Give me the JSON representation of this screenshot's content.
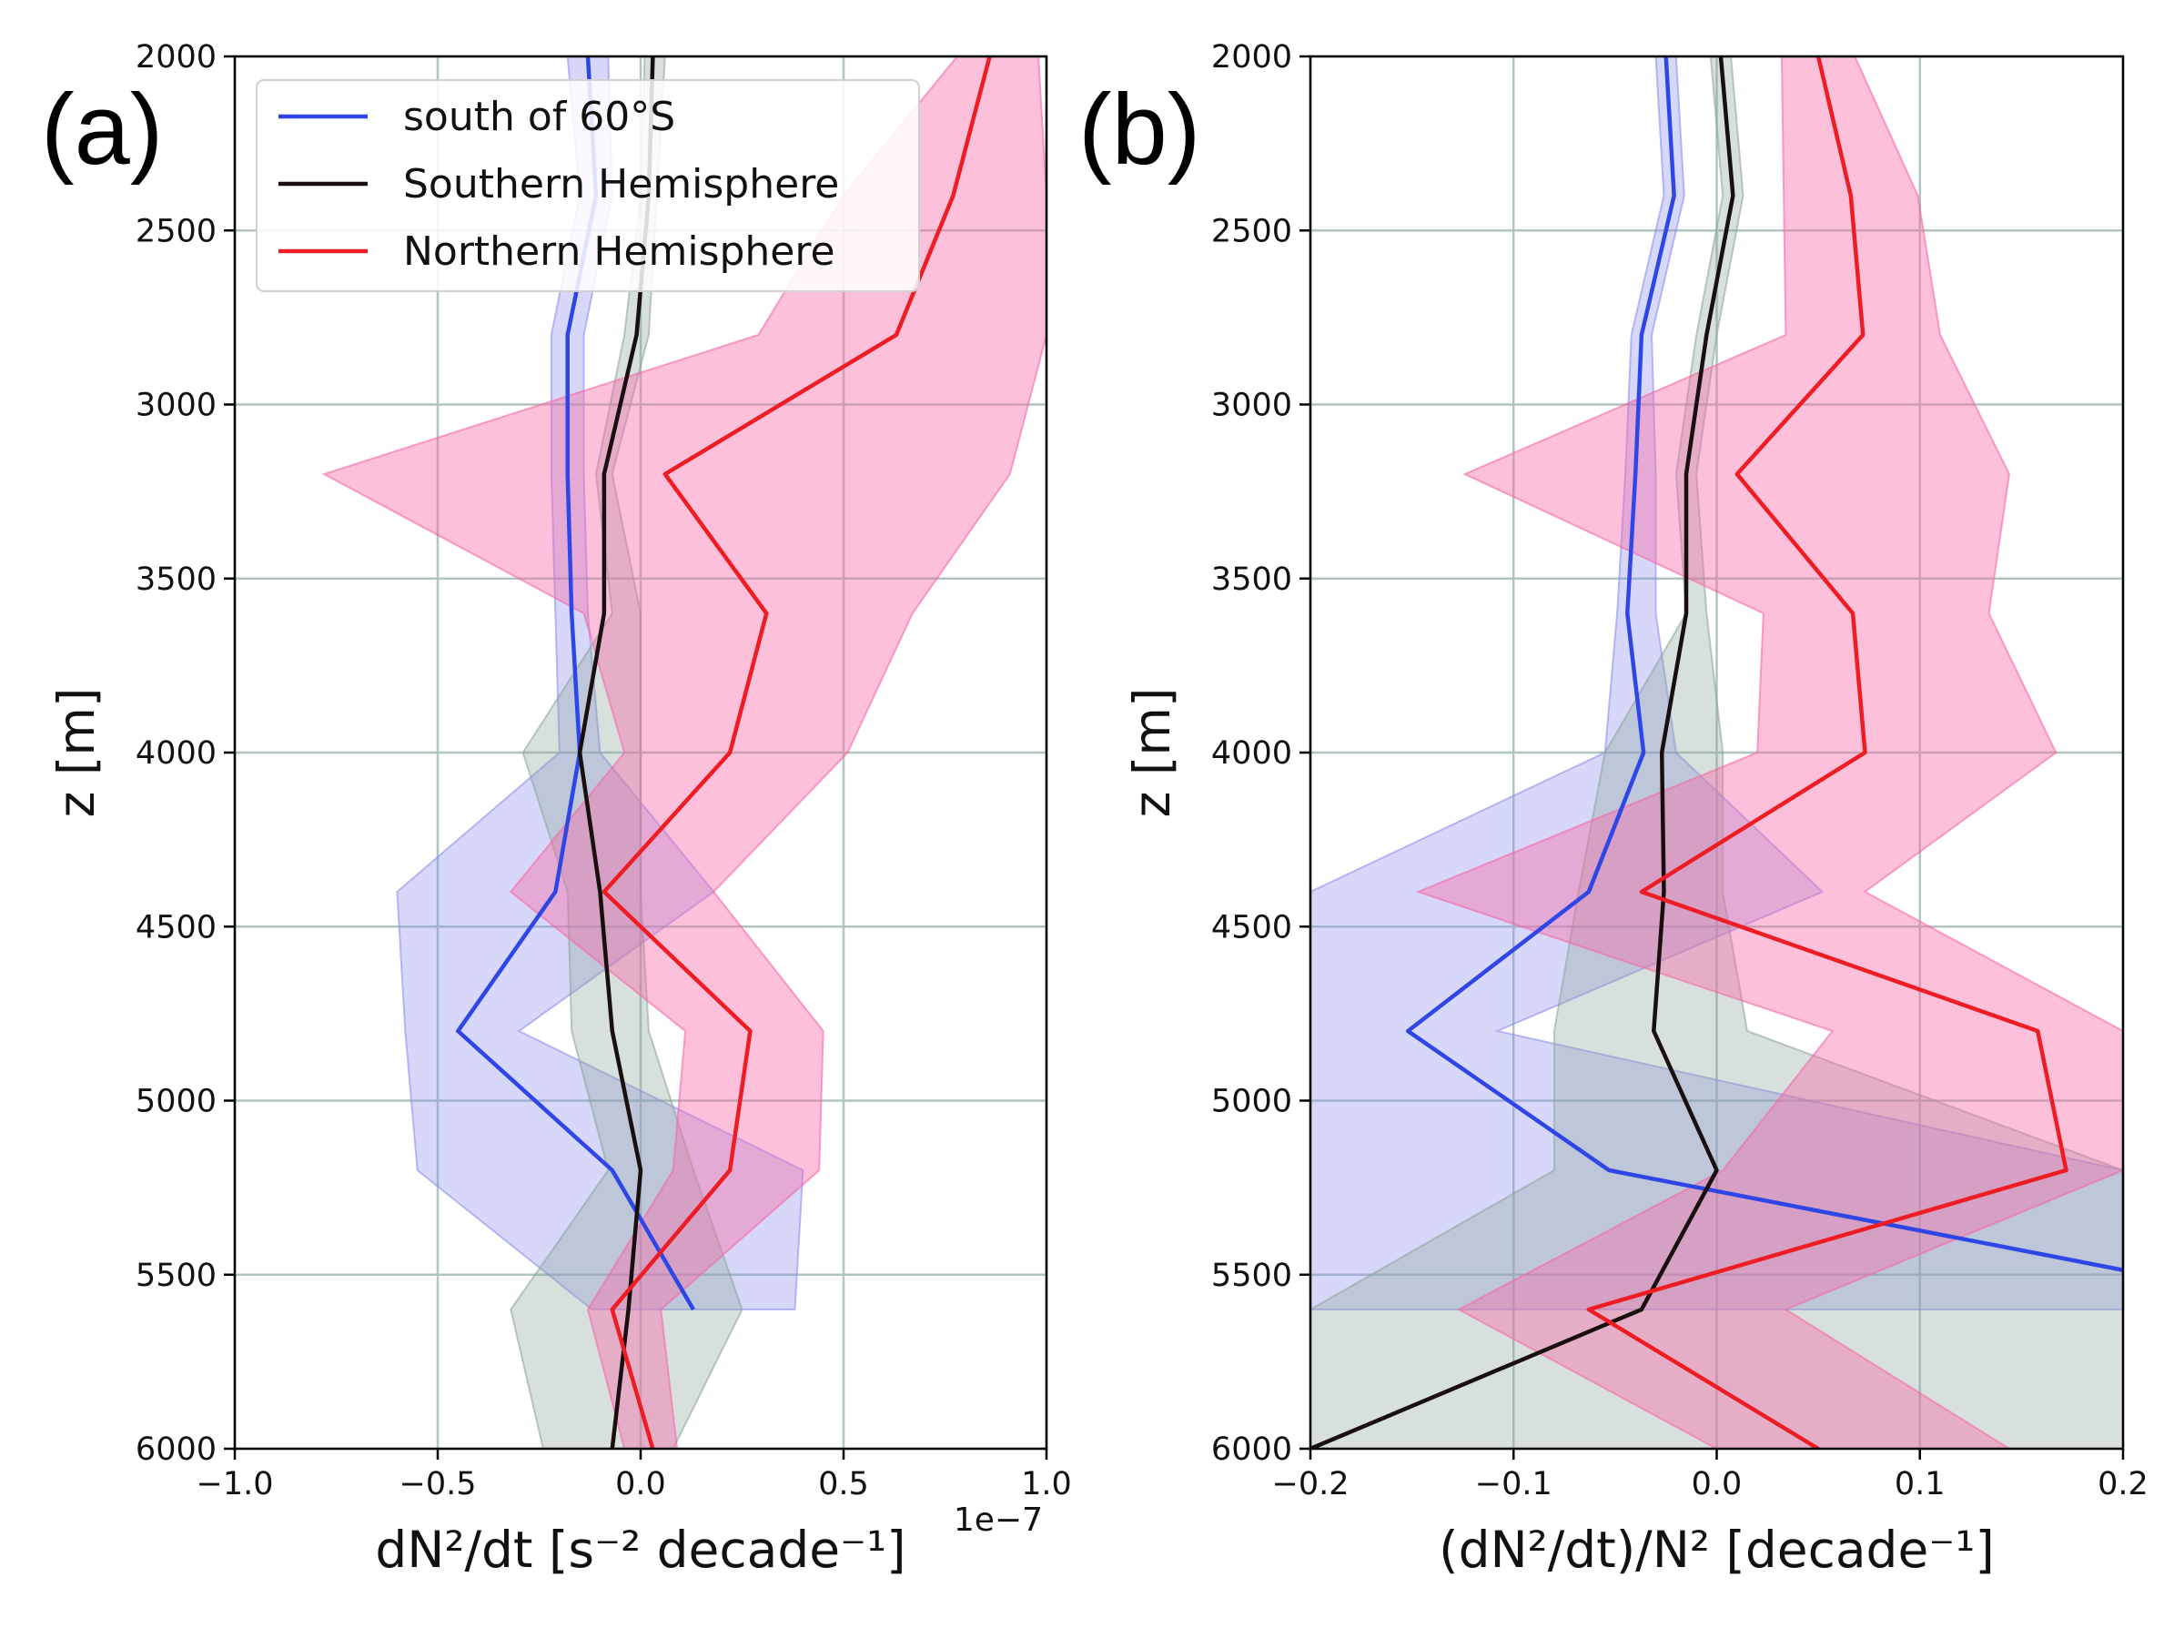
{
  "colors": {
    "blue": "#2f46e6",
    "black": "#1a0f0f",
    "red": "#ee1d23",
    "blue_fill": "#8c90ee",
    "grey_fill": "#8ea69e",
    "pink_fill": "#f768a6"
  },
  "legend": [
    "south of 60°S",
    "Southern Hemisphere",
    "Northern Hemisphere"
  ],
  "chart_data": [
    {
      "type": "line",
      "panel_label": "(a)",
      "xlabel": "dN²/dt [s⁻² decade⁻¹]",
      "x_offset_text": "1e−7",
      "ylabel": "z [m]",
      "xlim": [
        -1.0,
        1.0
      ],
      "ylim": [
        6000,
        2000
      ],
      "y_inverted": true,
      "grid": true,
      "legend_position": "top-right",
      "x_ticks": [
        "−1.0",
        "−0.5",
        "0.0",
        "0.5",
        "1.0"
      ],
      "x_tick_values": [
        -1.0,
        -0.5,
        0.0,
        0.5,
        1.0
      ],
      "y_ticks": [
        2000,
        2500,
        3000,
        3500,
        4000,
        4500,
        5000,
        5500,
        6000
      ],
      "z": [
        2000,
        2400,
        2800,
        3200,
        3600,
        4000,
        4400,
        4800,
        5200,
        5600,
        6000
      ],
      "series": [
        {
          "name": "south of 60°S",
          "color": "blue",
          "x": [
            -0.13,
            -0.11,
            -0.18,
            -0.18,
            -0.17,
            -0.15,
            -0.21,
            -0.45,
            -0.07,
            0.13,
            null
          ],
          "band_lo": [
            -0.18,
            -0.15,
            -0.22,
            -0.22,
            -0.21,
            -0.2,
            -0.6,
            -0.58,
            -0.55,
            -0.12,
            null
          ],
          "band_hi": [
            -0.08,
            -0.07,
            -0.14,
            -0.14,
            -0.13,
            -0.1,
            0.18,
            -0.3,
            0.4,
            0.38,
            null
          ]
        },
        {
          "name": "Southern Hemisphere",
          "color": "black",
          "x": [
            0.03,
            0.02,
            -0.01,
            -0.09,
            -0.09,
            -0.15,
            -0.1,
            -0.07,
            0.0,
            -0.03,
            -0.07
          ],
          "band_lo": [
            0.01,
            0.0,
            -0.04,
            -0.11,
            -0.07,
            -0.29,
            -0.18,
            -0.17,
            -0.08,
            -0.32,
            -0.24
          ],
          "band_hi": [
            0.06,
            0.04,
            0.02,
            -0.07,
            0.0,
            0.0,
            0.0,
            0.02,
            0.13,
            0.25,
            0.08
          ]
        },
        {
          "name": "Northern Hemisphere",
          "color": "red",
          "x": [
            0.86,
            0.77,
            0.63,
            0.06,
            0.31,
            0.22,
            -0.09,
            0.27,
            0.22,
            -0.07,
            0.03
          ],
          "band_lo": [
            0.78,
            0.5,
            0.29,
            -0.78,
            -0.14,
            -0.04,
            -0.32,
            0.11,
            0.08,
            -0.13,
            -0.04
          ],
          "band_hi": [
            0.98,
            1.0,
            1.0,
            0.91,
            0.67,
            0.51,
            0.18,
            0.45,
            0.44,
            0.05,
            0.09
          ]
        }
      ]
    },
    {
      "type": "line",
      "panel_label": "(b)",
      "xlabel": "(dN²/dt)/N² [decade⁻¹]",
      "ylabel": "z [m]",
      "xlim": [
        -0.2,
        0.2
      ],
      "ylim": [
        6000,
        2000
      ],
      "y_inverted": true,
      "grid": true,
      "x_ticks": [
        "−0.2",
        "−0.1",
        "0.0",
        "0.1",
        "0.2"
      ],
      "x_tick_values": [
        -0.2,
        -0.1,
        0.0,
        0.1,
        0.2
      ],
      "y_ticks": [
        2000,
        2500,
        3000,
        3500,
        4000,
        4500,
        5000,
        5500,
        6000
      ],
      "z": [
        2000,
        2400,
        2800,
        3200,
        3600,
        4000,
        4400,
        4800,
        5200,
        5600,
        6000
      ],
      "series": [
        {
          "name": "south of 60°S",
          "color": "blue",
          "x": [
            -0.025,
            -0.021,
            -0.037,
            -0.04,
            -0.044,
            -0.036,
            -0.063,
            -0.152,
            -0.053,
            0.3,
            null
          ],
          "band_lo": [
            -0.03,
            -0.026,
            -0.042,
            -0.045,
            -0.049,
            -0.055,
            -0.2,
            -0.2,
            -0.2,
            -0.2,
            null
          ],
          "band_hi": [
            -0.02,
            -0.016,
            -0.032,
            -0.03,
            -0.03,
            -0.02,
            0.052,
            -0.108,
            0.2,
            0.2,
            null
          ]
        },
        {
          "name": "Southern Hemisphere",
          "color": "black",
          "x": [
            0.002,
            0.008,
            -0.005,
            -0.015,
            -0.015,
            -0.027,
            -0.026,
            -0.031,
            0.0,
            -0.037,
            -0.2
          ],
          "band_lo": [
            -0.003,
            0.003,
            -0.01,
            -0.02,
            -0.015,
            -0.055,
            -0.068,
            -0.08,
            -0.08,
            -0.2,
            -0.2
          ],
          "band_hi": [
            0.007,
            0.013,
            0.0,
            -0.01,
            -0.005,
            0.003,
            0.003,
            0.015,
            0.2,
            0.2,
            0.2
          ]
        },
        {
          "name": "Northern Hemisphere",
          "color": "red",
          "x": [
            0.05,
            0.066,
            0.072,
            0.01,
            0.067,
            0.073,
            -0.037,
            0.158,
            0.172,
            -0.063,
            0.05
          ],
          "band_lo": [
            0.032,
            0.033,
            0.034,
            -0.124,
            0.023,
            0.02,
            -0.147,
            0.057,
            0.003,
            -0.127,
            0.0
          ],
          "band_hi": [
            0.068,
            0.099,
            0.11,
            0.144,
            0.134,
            0.167,
            0.073,
            0.2,
            0.2,
            0.034,
            0.144
          ]
        }
      ]
    }
  ]
}
